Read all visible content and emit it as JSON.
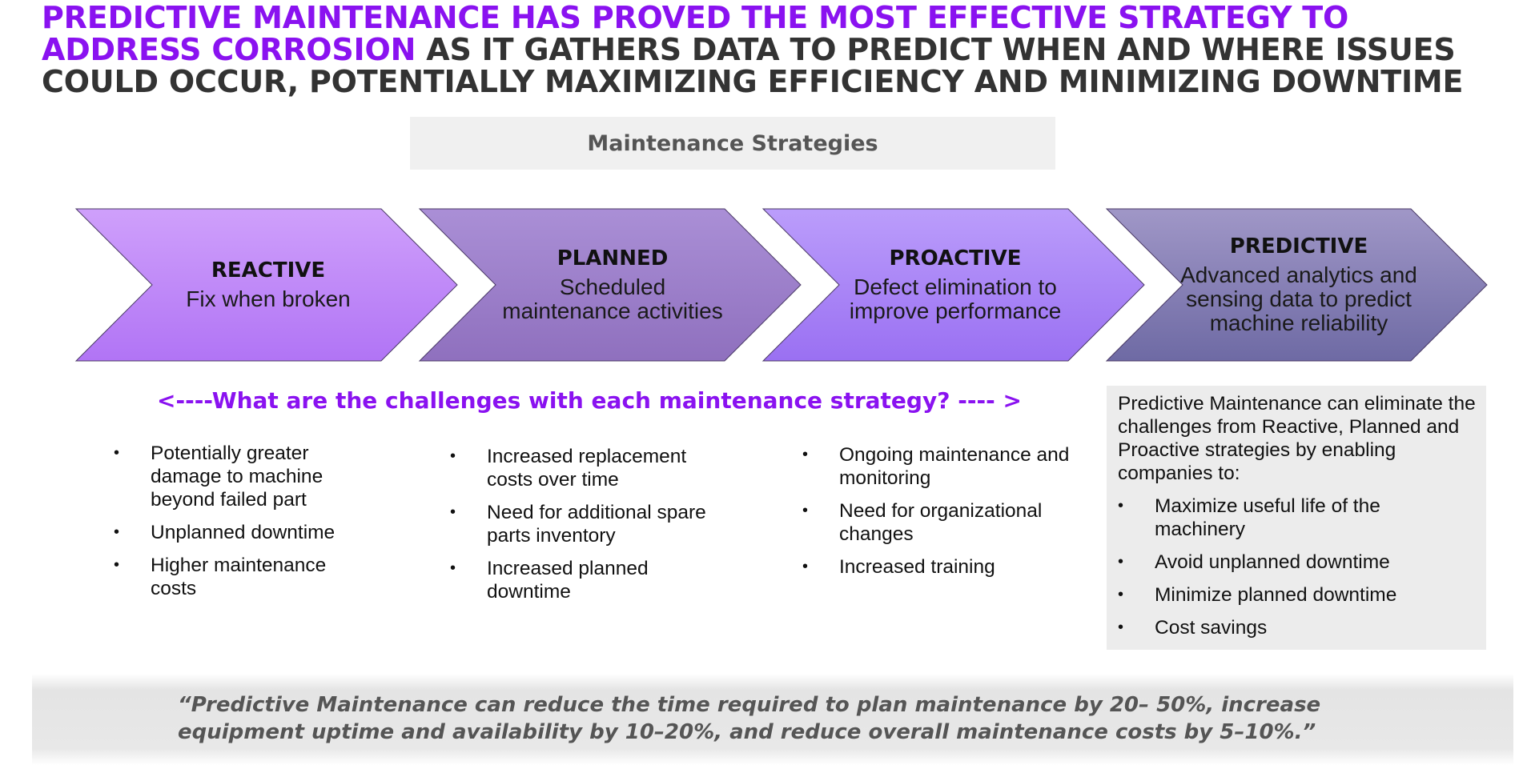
{
  "headline": {
    "accent": "PREDICTIVE MAINTENANCE HAS PROVED THE MOST EFFECTIVE STRATEGY TO ADDRESS CORROSION",
    "rest": " AS IT GATHERS DATA TO PREDICT WHEN AND WHERE ISSUES COULD OCCUR, POTENTIALLY MAXIMIZING EFFICIENCY AND MINIMIZING DOWNTIME"
  },
  "strategies_title": "Maintenance Strategies",
  "strategies": [
    {
      "label": "REACTIVE",
      "desc": "Fix when broken",
      "color_top": "#cfa0fb",
      "color_bottom": "#b174f5"
    },
    {
      "label": "PLANNED",
      "desc": "Scheduled maintenance activities",
      "color_top": "#aa8fd6",
      "color_bottom": "#8f70be"
    },
    {
      "label": "PROACTIVE",
      "desc": "Defect elimination to improve performance",
      "color_top": "#bb9dfb",
      "color_bottom": "#9a70f2"
    },
    {
      "label": "PREDICTIVE",
      "desc": "Advanced analytics and sensing data to predict machine reliability",
      "color_top": "#a097c7",
      "color_bottom": "#6e6aa4"
    }
  ],
  "challenges_question": "<----What are the challenges with each maintenance strategy? ---- >",
  "challenges": {
    "reactive": [
      "Potentially greater damage to machine beyond failed part",
      "Unplanned downtime",
      "Higher maintenance costs"
    ],
    "planned": [
      "Increased replacement costs over time",
      "Need for additional spare parts inventory",
      "Increased planned downtime"
    ],
    "proactive": [
      "Ongoing maintenance and monitoring",
      "Need for organizational changes",
      "Increased training"
    ]
  },
  "predictive_box": {
    "intro": "Predictive Maintenance can eliminate the challenges from Reactive, Planned and Proactive strategies by enabling companies to:",
    "bullets": [
      "Maximize useful life of the machinery",
      "Avoid unplanned downtime",
      "Minimize planned downtime",
      "Cost savings"
    ]
  },
  "quote": "“Predictive Maintenance can reduce the time required to plan maintenance by 20– 50%, increase equipment uptime and availability by 10–20%, and reduce overall maintenance costs by 5–10%.”"
}
